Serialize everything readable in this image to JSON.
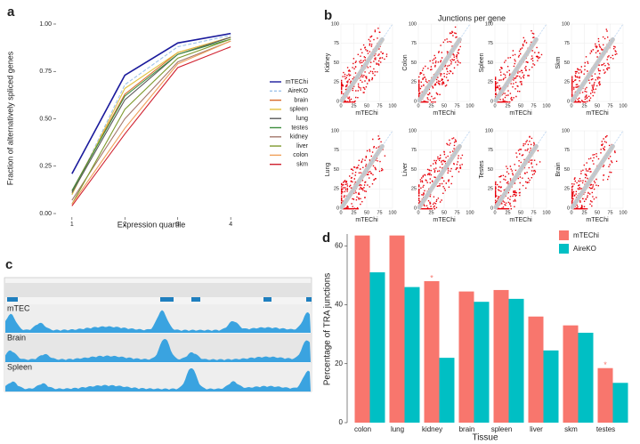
{
  "panels": [
    "a",
    "b",
    "c",
    "d"
  ],
  "chart_data": [
    {
      "type": "line",
      "xlabel": "Expression quartile",
      "ylabel": "Fraction of alternatively spliced genes",
      "x": [
        1,
        2,
        3,
        4
      ],
      "xlim": [
        0.7,
        4.3
      ],
      "xticks": [
        1,
        2,
        3,
        4
      ],
      "ylim": [
        0,
        1
      ],
      "yticks": [
        {
          "value": 0,
          "label": "0.00"
        },
        {
          "value": 0.25,
          "label": "0.25"
        },
        {
          "value": 0.5,
          "label": "0.50"
        },
        {
          "value": 0.75,
          "label": "0.75"
        },
        {
          "value": 1,
          "label": "1.00"
        }
      ],
      "series": [
        {
          "name": "mTEChi",
          "color": "#1a1a9c",
          "values": [
            0.21,
            0.73,
            0.9,
            0.95
          ]
        },
        {
          "name": "AireKO",
          "color": "#9fc3ea",
          "dash": true,
          "values": [
            0.1,
            0.68,
            0.88,
            0.94
          ]
        },
        {
          "name": "brain",
          "color": "#d86b2b",
          "values": [
            0.12,
            0.63,
            0.85,
            0.93
          ]
        },
        {
          "name": "spleen",
          "color": "#e3c13d",
          "values": [
            0.1,
            0.66,
            0.85,
            0.93
          ]
        },
        {
          "name": "lung",
          "color": "#5a5a5a",
          "values": [
            0.11,
            0.6,
            0.84,
            0.93
          ]
        },
        {
          "name": "testes",
          "color": "#3e8f3e",
          "values": [
            0.12,
            0.62,
            0.84,
            0.92
          ]
        },
        {
          "name": "kidney",
          "color": "#a4786c",
          "values": [
            0.07,
            0.5,
            0.8,
            0.91
          ]
        },
        {
          "name": "liver",
          "color": "#7f9a2e",
          "values": [
            0.05,
            0.55,
            0.82,
            0.92
          ]
        },
        {
          "name": "colon",
          "color": "#f0a05a",
          "values": [
            0.05,
            0.45,
            0.79,
            0.91
          ]
        },
        {
          "name": "skm",
          "color": "#d0202e",
          "values": [
            0.04,
            0.42,
            0.77,
            0.88
          ]
        }
      ]
    },
    {
      "type": "scatter_grid",
      "title": "Junctions per gene",
      "xlabel": "mTEChi",
      "xlim": [
        0,
        100
      ],
      "ylim": [
        0,
        100
      ],
      "xticks": [
        0,
        25,
        50,
        75,
        100
      ],
      "yticks": [
        0,
        25,
        50,
        75,
        100
      ],
      "point_color": "#e8000b",
      "diagonal_color": "#c8c8c8",
      "panels": [
        "Kidney",
        "Colon",
        "Spleen",
        "Skm",
        "Lung",
        "Liver",
        "Testes",
        "Brain"
      ]
    },
    {
      "type": "coverage_tracks",
      "color": "#3aa3e0",
      "tracks": [
        "mTEC",
        "Brain",
        "Spleen"
      ]
    },
    {
      "type": "grouped_bar",
      "xlabel": "Tissue",
      "ylabel": "Percentage of TRA junctions",
      "categories": [
        "colon",
        "lung",
        "kidney",
        "brain",
        "spleen",
        "liver",
        "skm",
        "testes"
      ],
      "ylim": [
        0,
        64
      ],
      "yticks": [
        0,
        20,
        40,
        60
      ],
      "series": [
        {
          "name": "mTEChi",
          "color": "#f8766d",
          "values": [
            63.5,
            63.5,
            48,
            44.5,
            45,
            36,
            33,
            18.5
          ]
        },
        {
          "name": "AireKO",
          "color": "#00bfc4",
          "values": [
            51,
            46,
            22,
            41,
            42,
            24.5,
            30.5,
            13.5
          ]
        }
      ],
      "annotations": [
        {
          "text": "*",
          "category": "kidney"
        },
        {
          "text": "*",
          "category": "testes"
        }
      ]
    }
  ]
}
